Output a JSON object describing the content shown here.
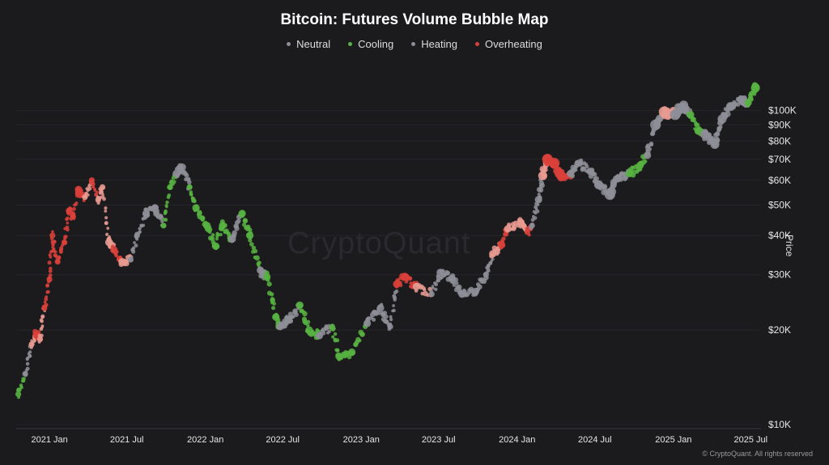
{
  "chart_data": {
    "type": "scatter",
    "title": "Bitcoin: Futures Volume Bubble Map",
    "ylabel": "Price",
    "y_scale": "log",
    "ylim": [
      10000,
      128000
    ],
    "xlim": [
      "2020-10-15",
      "2025-07-25"
    ],
    "grid": true,
    "legend_position": "top-center",
    "x_ticks": [
      {
        "date": "2021-01-01",
        "label": "2021 Jan"
      },
      {
        "date": "2021-07-01",
        "label": "2021 Jul"
      },
      {
        "date": "2022-01-01",
        "label": "2022 Jan"
      },
      {
        "date": "2022-07-01",
        "label": "2022 Jul"
      },
      {
        "date": "2023-01-01",
        "label": "2023 Jan"
      },
      {
        "date": "2023-07-01",
        "label": "2023 Jul"
      },
      {
        "date": "2024-01-01",
        "label": "2024 Jan"
      },
      {
        "date": "2024-07-01",
        "label": "2024 Jul"
      },
      {
        "date": "2025-01-01",
        "label": "2025 Jan"
      },
      {
        "date": "2025-07-01",
        "label": "2025 Jul"
      }
    ],
    "y_ticks": [
      {
        "value": 10000,
        "label": "$10K"
      },
      {
        "value": 20000,
        "label": "$20K"
      },
      {
        "value": 30000,
        "label": "$30K"
      },
      {
        "value": 40000,
        "label": "$40K"
      },
      {
        "value": 50000,
        "label": "$50K"
      },
      {
        "value": 60000,
        "label": "$60K"
      },
      {
        "value": 70000,
        "label": "$70K"
      },
      {
        "value": 80000,
        "label": "$80K"
      },
      {
        "value": 90000,
        "label": "$90K"
      },
      {
        "value": 100000,
        "label": "$100K"
      }
    ],
    "series": [
      {
        "name": "Neutral",
        "color": "#8e8e98"
      },
      {
        "name": "Cooling",
        "color": "#57b341"
      },
      {
        "name": "Heating",
        "color": "#e89a90"
      },
      {
        "name": "Overheating",
        "color": "#d9403a"
      }
    ],
    "points": [
      {
        "date": "2020-10-20",
        "price": 12500,
        "state": "Cooling",
        "size": 2
      },
      {
        "date": "2020-11-05",
        "price": 14500,
        "state": "Neutral",
        "size": 2
      },
      {
        "date": "2020-11-20",
        "price": 18000,
        "state": "Heating",
        "size": 2
      },
      {
        "date": "2020-12-01",
        "price": 19300,
        "state": "Overheating",
        "size": 3
      },
      {
        "date": "2020-12-10",
        "price": 18700,
        "state": "Heating",
        "size": 2
      },
      {
        "date": "2020-12-20",
        "price": 23500,
        "state": "Overheating",
        "size": 2
      },
      {
        "date": "2021-01-01",
        "price": 29000,
        "state": "Overheating",
        "size": 2
      },
      {
        "date": "2021-01-08",
        "price": 40000,
        "state": "Overheating",
        "size": 2
      },
      {
        "date": "2021-01-20",
        "price": 33000,
        "state": "Overheating",
        "size": 2
      },
      {
        "date": "2021-02-05",
        "price": 38000,
        "state": "Overheating",
        "size": 2
      },
      {
        "date": "2021-02-15",
        "price": 48000,
        "state": "Overheating",
        "size": 2
      },
      {
        "date": "2021-02-25",
        "price": 46000,
        "state": "Overheating",
        "size": 2
      },
      {
        "date": "2021-03-10",
        "price": 56000,
        "state": "Overheating",
        "size": 3
      },
      {
        "date": "2021-03-25",
        "price": 53000,
        "state": "Heating",
        "size": 2
      },
      {
        "date": "2021-04-10",
        "price": 60000,
        "state": "Overheating",
        "size": 2
      },
      {
        "date": "2021-04-25",
        "price": 52000,
        "state": "Heating",
        "size": 2
      },
      {
        "date": "2021-05-05",
        "price": 57000,
        "state": "Heating",
        "size": 2
      },
      {
        "date": "2021-05-20",
        "price": 38000,
        "state": "Heating",
        "size": 3
      },
      {
        "date": "2021-06-01",
        "price": 36000,
        "state": "Overheating",
        "size": 3
      },
      {
        "date": "2021-06-20",
        "price": 33000,
        "state": "Heating",
        "size": 3
      },
      {
        "date": "2021-07-10",
        "price": 33500,
        "state": "Neutral",
        "size": 2
      },
      {
        "date": "2021-07-25",
        "price": 40000,
        "state": "Neutral",
        "size": 2
      },
      {
        "date": "2021-08-15",
        "price": 47000,
        "state": "Neutral",
        "size": 3
      },
      {
        "date": "2021-09-05",
        "price": 49000,
        "state": "Neutral",
        "size": 3
      },
      {
        "date": "2021-09-25",
        "price": 43000,
        "state": "Cooling",
        "size": 2
      },
      {
        "date": "2021-10-10",
        "price": 57000,
        "state": "Cooling",
        "size": 2
      },
      {
        "date": "2021-10-25",
        "price": 63000,
        "state": "Neutral",
        "size": 3
      },
      {
        "date": "2021-11-08",
        "price": 66000,
        "state": "Neutral",
        "size": 3
      },
      {
        "date": "2021-11-25",
        "price": 57000,
        "state": "Cooling",
        "size": 2
      },
      {
        "date": "2021-12-10",
        "price": 49000,
        "state": "Cooling",
        "size": 3
      },
      {
        "date": "2022-01-05",
        "price": 43000,
        "state": "Cooling",
        "size": 3
      },
      {
        "date": "2022-01-25",
        "price": 37000,
        "state": "Cooling",
        "size": 3
      },
      {
        "date": "2022-02-10",
        "price": 43000,
        "state": "Cooling",
        "size": 3
      },
      {
        "date": "2022-03-05",
        "price": 39000,
        "state": "Neutral",
        "size": 3
      },
      {
        "date": "2022-03-28",
        "price": 47000,
        "state": "Cooling",
        "size": 3
      },
      {
        "date": "2022-04-15",
        "price": 40000,
        "state": "Cooling",
        "size": 3
      },
      {
        "date": "2022-05-10",
        "price": 31000,
        "state": "Neutral",
        "size": 3
      },
      {
        "date": "2022-05-25",
        "price": 29500,
        "state": "Cooling",
        "size": 3
      },
      {
        "date": "2022-06-15",
        "price": 22000,
        "state": "Cooling",
        "size": 3
      },
      {
        "date": "2022-06-25",
        "price": 20500,
        "state": "Neutral",
        "size": 3
      },
      {
        "date": "2022-07-15",
        "price": 21500,
        "state": "Neutral",
        "size": 3
      },
      {
        "date": "2022-08-10",
        "price": 24000,
        "state": "Cooling",
        "size": 3
      },
      {
        "date": "2022-09-01",
        "price": 20000,
        "state": "Cooling",
        "size": 3
      },
      {
        "date": "2022-09-25",
        "price": 19200,
        "state": "Neutral",
        "size": 3
      },
      {
        "date": "2022-10-25",
        "price": 20500,
        "state": "Cooling",
        "size": 2
      },
      {
        "date": "2022-11-10",
        "price": 16500,
        "state": "Cooling",
        "size": 3
      },
      {
        "date": "2022-12-10",
        "price": 17000,
        "state": "Cooling",
        "size": 3
      },
      {
        "date": "2023-01-15",
        "price": 21000,
        "state": "Neutral",
        "size": 3
      },
      {
        "date": "2023-02-15",
        "price": 23500,
        "state": "Neutral",
        "size": 3
      },
      {
        "date": "2023-03-10",
        "price": 20500,
        "state": "Neutral",
        "size": 2
      },
      {
        "date": "2023-03-25",
        "price": 28000,
        "state": "Overheating",
        "size": 3
      },
      {
        "date": "2023-04-15",
        "price": 29500,
        "state": "Overheating",
        "size": 3
      },
      {
        "date": "2023-05-10",
        "price": 27500,
        "state": "Heating",
        "size": 3
      },
      {
        "date": "2023-06-15",
        "price": 26000,
        "state": "Neutral",
        "size": 2
      },
      {
        "date": "2023-07-05",
        "price": 30500,
        "state": "Neutral",
        "size": 3
      },
      {
        "date": "2023-08-01",
        "price": 29200,
        "state": "Neutral",
        "size": 3
      },
      {
        "date": "2023-08-25",
        "price": 26000,
        "state": "Neutral",
        "size": 3
      },
      {
        "date": "2023-09-25",
        "price": 26500,
        "state": "Neutral",
        "size": 3
      },
      {
        "date": "2023-10-20",
        "price": 30000,
        "state": "Neutral",
        "size": 2
      },
      {
        "date": "2023-11-05",
        "price": 35000,
        "state": "Heating",
        "size": 3
      },
      {
        "date": "2023-11-25",
        "price": 37500,
        "state": "Overheating",
        "size": 3
      },
      {
        "date": "2023-12-10",
        "price": 42000,
        "state": "Heating",
        "size": 3
      },
      {
        "date": "2024-01-10",
        "price": 44000,
        "state": "Heating",
        "size": 3
      },
      {
        "date": "2024-01-25",
        "price": 41000,
        "state": "Overheating",
        "size": 2
      },
      {
        "date": "2024-02-05",
        "price": 43000,
        "state": "Neutral",
        "size": 2
      },
      {
        "date": "2024-02-20",
        "price": 52000,
        "state": "Neutral",
        "size": 3
      },
      {
        "date": "2024-03-01",
        "price": 62000,
        "state": "Heating",
        "size": 4
      },
      {
        "date": "2024-03-12",
        "price": 70000,
        "state": "Overheating",
        "size": 5
      },
      {
        "date": "2024-03-28",
        "price": 68000,
        "state": "Overheating",
        "size": 5
      },
      {
        "date": "2024-04-12",
        "price": 62000,
        "state": "Overheating",
        "size": 4
      },
      {
        "date": "2024-05-05",
        "price": 63000,
        "state": "Neutral",
        "size": 3
      },
      {
        "date": "2024-05-25",
        "price": 68000,
        "state": "Neutral",
        "size": 3
      },
      {
        "date": "2024-06-20",
        "price": 64000,
        "state": "Neutral",
        "size": 3
      },
      {
        "date": "2024-07-10",
        "price": 58000,
        "state": "Neutral",
        "size": 4
      },
      {
        "date": "2024-08-05",
        "price": 54000,
        "state": "Neutral",
        "size": 5
      },
      {
        "date": "2024-08-25",
        "price": 61000,
        "state": "Neutral",
        "size": 3
      },
      {
        "date": "2024-09-20",
        "price": 63000,
        "state": "Cooling",
        "size": 3
      },
      {
        "date": "2024-10-15",
        "price": 67000,
        "state": "Cooling",
        "size": 3
      },
      {
        "date": "2024-11-01",
        "price": 72000,
        "state": "Neutral",
        "size": 3
      },
      {
        "date": "2024-11-20",
        "price": 90000,
        "state": "Neutral",
        "size": 5
      },
      {
        "date": "2024-12-10",
        "price": 99000,
        "state": "Heating",
        "size": 5
      },
      {
        "date": "2025-01-05",
        "price": 97000,
        "state": "Neutral",
        "size": 5
      },
      {
        "date": "2025-01-25",
        "price": 104000,
        "state": "Neutral",
        "size": 4
      },
      {
        "date": "2025-02-10",
        "price": 97000,
        "state": "Cooling",
        "size": 3
      },
      {
        "date": "2025-02-28",
        "price": 86000,
        "state": "Cooling",
        "size": 3
      },
      {
        "date": "2025-03-15",
        "price": 84000,
        "state": "Neutral",
        "size": 4
      },
      {
        "date": "2025-04-08",
        "price": 78000,
        "state": "Neutral",
        "size": 4
      },
      {
        "date": "2025-04-25",
        "price": 94000,
        "state": "Neutral",
        "size": 4
      },
      {
        "date": "2025-05-15",
        "price": 103000,
        "state": "Neutral",
        "size": 4
      },
      {
        "date": "2025-06-10",
        "price": 108000,
        "state": "Neutral",
        "size": 4
      },
      {
        "date": "2025-06-25",
        "price": 106000,
        "state": "Cooling",
        "size": 3
      },
      {
        "date": "2025-07-12",
        "price": 118000,
        "state": "Cooling",
        "size": 4
      }
    ]
  },
  "watermark": "CryptoQuant",
  "copyright": "© CryptoQuant. All rights reserved"
}
